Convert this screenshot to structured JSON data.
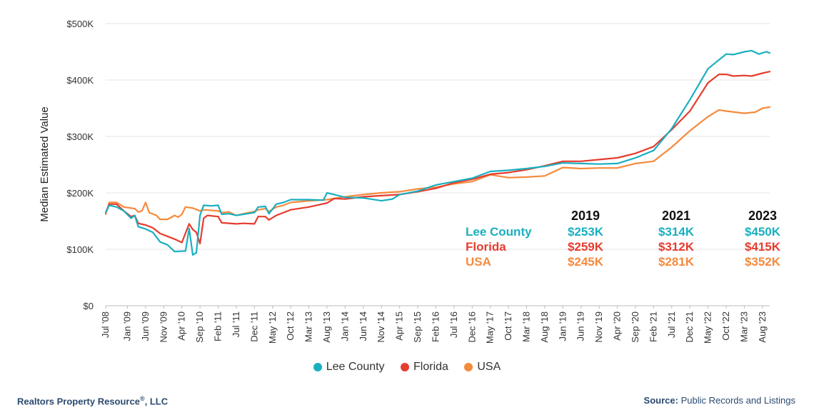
{
  "chart_data": {
    "type": "line",
    "ylabel": "Median Estimated Value",
    "ylim": [
      0,
      500000
    ],
    "yticks": [
      "$0",
      "$100K",
      "$200K",
      "$300K",
      "$400K",
      "$500K"
    ],
    "ytick_values": [
      0,
      100000,
      200000,
      300000,
      400000,
      500000
    ],
    "x_start": "Jul '08",
    "x_end": "Oct '23",
    "xticks": [
      "Jul '08",
      "Jan '09",
      "Jun '09",
      "Nov '09",
      "Apr '10",
      "Sep '10",
      "Feb '11",
      "Jul '11",
      "Dec '11",
      "May '12",
      "Oct '12",
      "Mar '13",
      "Aug '13",
      "Jan '14",
      "Jun '14",
      "Nov '14",
      "Apr '15",
      "Sep '15",
      "Feb '16",
      "Jul '16",
      "Dec '16",
      "May '17",
      "Oct '17",
      "Mar '18",
      "Aug '18",
      "Jan '19",
      "Jun '19",
      "Nov '19",
      "Apr '20",
      "Sep '20",
      "Feb '21",
      "Jul '21",
      "Dec '21",
      "May '22",
      "Oct '22",
      "Mar '23",
      "Aug '23"
    ],
    "grid": "horizontal",
    "legend_position": "bottom",
    "series": [
      {
        "name": "Lee County",
        "color": "#1aafc0",
        "points": [
          [
            "Jul '08",
            165000
          ],
          [
            "Aug '08",
            178000
          ],
          [
            "Oct '08",
            175000
          ],
          [
            "Dec '08",
            168000
          ],
          [
            "Feb '09",
            155000
          ],
          [
            "Mar '09",
            160000
          ],
          [
            "Apr '09",
            140000
          ],
          [
            "Jun '09",
            136000
          ],
          [
            "Aug '09",
            130000
          ],
          [
            "Oct '09",
            113000
          ],
          [
            "Dec '09",
            108000
          ],
          [
            "Feb '10",
            96000
          ],
          [
            "May '10",
            97000
          ],
          [
            "Jun '10",
            137000
          ],
          [
            "Jul '10",
            90000
          ],
          [
            "Aug '10",
            94000
          ],
          [
            "Sep '10",
            160000
          ],
          [
            "Oct '10",
            178000
          ],
          [
            "Dec '10",
            177000
          ],
          [
            "Feb '11",
            178000
          ],
          [
            "Mar '11",
            162000
          ],
          [
            "May '11",
            163000
          ],
          [
            "Jul '11",
            160000
          ],
          [
            "Sep '11",
            162000
          ],
          [
            "Dec '11",
            165000
          ],
          [
            "Jan '12",
            175000
          ],
          [
            "Mar '12",
            176000
          ],
          [
            "Apr '12",
            163000
          ],
          [
            "Jun '12",
            180000
          ],
          [
            "Aug '12",
            183000
          ],
          [
            "Oct '12",
            188000
          ],
          [
            "Mar '13",
            188000
          ],
          [
            "Jul '13",
            187000
          ],
          [
            "Aug '13",
            200000
          ],
          [
            "Oct '13",
            197000
          ],
          [
            "Jan '14",
            192000
          ],
          [
            "Jun '14",
            191000
          ],
          [
            "Nov '14",
            186000
          ],
          [
            "Feb '15",
            189000
          ],
          [
            "Apr '15",
            197000
          ],
          [
            "Sep '15",
            203000
          ],
          [
            "Feb '16",
            214000
          ],
          [
            "Jul '16",
            220000
          ],
          [
            "Dec '16",
            226000
          ],
          [
            "May '17",
            238000
          ],
          [
            "Oct '17",
            240000
          ],
          [
            "Mar '18",
            243000
          ],
          [
            "Aug '18",
            247000
          ],
          [
            "Jan '19",
            253000
          ],
          [
            "Jun '19",
            252000
          ],
          [
            "Nov '19",
            251000
          ],
          [
            "Apr '20",
            252000
          ],
          [
            "Sep '20",
            262000
          ],
          [
            "Feb '21",
            275000
          ],
          [
            "Jul '21",
            314000
          ],
          [
            "Dec '21",
            365000
          ],
          [
            "May '22",
            420000
          ],
          [
            "Oct '22",
            446000
          ],
          [
            "Dec '22",
            445000
          ],
          [
            "Mar '23",
            450000
          ],
          [
            "May '23",
            452000
          ],
          [
            "Jul '23",
            446000
          ],
          [
            "Sep '23",
            450000
          ],
          [
            "Oct '23",
            448000
          ]
        ]
      },
      {
        "name": "Florida",
        "color": "#e63c2f",
        "points": [
          [
            "Jul '08",
            165000
          ],
          [
            "Aug '08",
            180000
          ],
          [
            "Oct '08",
            180000
          ],
          [
            "Dec '08",
            168000
          ],
          [
            "Feb '09",
            158000
          ],
          [
            "Mar '09",
            160000
          ],
          [
            "Apr '09",
            146000
          ],
          [
            "Jun '09",
            143000
          ],
          [
            "Aug '09",
            138000
          ],
          [
            "Oct '09",
            128000
          ],
          [
            "Dec '09",
            123000
          ],
          [
            "Feb '10",
            118000
          ],
          [
            "Apr '10",
            112000
          ],
          [
            "Jun '10",
            145000
          ],
          [
            "Jul '10",
            135000
          ],
          [
            "Aug '10",
            130000
          ],
          [
            "Sep '10",
            110000
          ],
          [
            "Oct '10",
            155000
          ],
          [
            "Nov '10",
            160000
          ],
          [
            "Feb '11",
            158000
          ],
          [
            "Mar '11",
            147000
          ],
          [
            "Jul '11",
            145000
          ],
          [
            "Sep '11",
            146000
          ],
          [
            "Dec '11",
            145000
          ],
          [
            "Jan '12",
            158000
          ],
          [
            "Mar '12",
            158000
          ],
          [
            "Apr '12",
            152000
          ],
          [
            "Jun '12",
            160000
          ],
          [
            "Aug '12",
            165000
          ],
          [
            "Oct '12",
            170000
          ],
          [
            "Mar '13",
            175000
          ],
          [
            "Aug '13",
            182000
          ],
          [
            "Oct '13",
            190000
          ],
          [
            "Jan '14",
            189000
          ],
          [
            "Jun '14",
            193000
          ],
          [
            "Nov '14",
            195000
          ],
          [
            "Apr '15",
            197000
          ],
          [
            "Sep '15",
            202000
          ],
          [
            "Feb '16",
            208000
          ],
          [
            "Jul '16",
            218000
          ],
          [
            "Dec '16",
            224000
          ],
          [
            "May '17",
            233000
          ],
          [
            "Oct '17",
            236000
          ],
          [
            "Mar '18",
            241000
          ],
          [
            "Aug '18",
            248000
          ],
          [
            "Jan '19",
            256000
          ],
          [
            "Jun '19",
            256000
          ],
          [
            "Nov '19",
            259000
          ],
          [
            "Apr '20",
            262000
          ],
          [
            "Sep '20",
            270000
          ],
          [
            "Feb '21",
            282000
          ],
          [
            "Jul '21",
            312000
          ],
          [
            "Dec '21",
            345000
          ],
          [
            "May '22",
            395000
          ],
          [
            "Aug '22",
            410000
          ],
          [
            "Oct '22",
            410000
          ],
          [
            "Dec '22",
            407000
          ],
          [
            "Mar '23",
            408000
          ],
          [
            "May '23",
            407000
          ],
          [
            "Aug '23",
            412000
          ],
          [
            "Oct '23",
            415000
          ]
        ]
      },
      {
        "name": "USA",
        "color": "#f58a3c",
        "points": [
          [
            "Jul '08",
            162000
          ],
          [
            "Aug '08",
            183000
          ],
          [
            "Oct '08",
            183000
          ],
          [
            "Dec '08",
            175000
          ],
          [
            "Mar '09",
            172000
          ],
          [
            "Apr '09",
            166000
          ],
          [
            "May '09",
            168000
          ],
          [
            "Jun '09",
            183000
          ],
          [
            "Jul '09",
            165000
          ],
          [
            "Sep '09",
            160000
          ],
          [
            "Oct '09",
            153000
          ],
          [
            "Dec '09",
            153000
          ],
          [
            "Feb '10",
            160000
          ],
          [
            "Mar '10",
            157000
          ],
          [
            "Apr '10",
            162000
          ],
          [
            "May '10",
            175000
          ],
          [
            "Jul '10",
            173000
          ],
          [
            "Sep '10",
            168000
          ],
          [
            "Oct '10",
            170000
          ],
          [
            "Feb '11",
            168000
          ],
          [
            "Mar '11",
            165000
          ],
          [
            "May '11",
            166000
          ],
          [
            "Jul '11",
            160000
          ],
          [
            "Sep '11",
            163000
          ],
          [
            "Dec '11",
            167000
          ],
          [
            "Jan '12",
            170000
          ],
          [
            "Mar '12",
            172000
          ],
          [
            "Apr '12",
            167000
          ],
          [
            "Jun '12",
            175000
          ],
          [
            "Aug '12",
            178000
          ],
          [
            "Oct '12",
            183000
          ],
          [
            "Mar '13",
            186000
          ],
          [
            "Aug '13",
            188000
          ],
          [
            "Jan '14",
            193000
          ],
          [
            "Jun '14",
            197000
          ],
          [
            "Nov '14",
            200000
          ],
          [
            "Apr '15",
            202000
          ],
          [
            "Sep '15",
            207000
          ],
          [
            "Feb '16",
            210000
          ],
          [
            "Jul '16",
            216000
          ],
          [
            "Dec '16",
            220000
          ],
          [
            "May '17",
            232000
          ],
          [
            "Oct '17",
            227000
          ],
          [
            "Mar '18",
            228000
          ],
          [
            "Aug '18",
            230000
          ],
          [
            "Jan '19",
            245000
          ],
          [
            "Jun '19",
            243000
          ],
          [
            "Nov '19",
            244000
          ],
          [
            "Apr '20",
            244000
          ],
          [
            "Sep '20",
            252000
          ],
          [
            "Feb '21",
            256000
          ],
          [
            "Jul '21",
            281000
          ],
          [
            "Dec '21",
            310000
          ],
          [
            "May '22",
            335000
          ],
          [
            "Aug '22",
            347000
          ],
          [
            "Oct '22",
            345000
          ],
          [
            "Mar '23",
            341000
          ],
          [
            "Jun '23",
            343000
          ],
          [
            "Aug '23",
            350000
          ],
          [
            "Oct '23",
            352000
          ]
        ]
      }
    ],
    "summary_table": {
      "years": [
        "2019",
        "2021",
        "2023"
      ],
      "rows": [
        {
          "label": "Lee County",
          "color": "#1aafc0",
          "values": [
            "$253K",
            "$314K",
            "$450K"
          ]
        },
        {
          "label": "Florida",
          "color": "#e63c2f",
          "values": [
            "$259K",
            "$312K",
            "$415K"
          ]
        },
        {
          "label": "USA",
          "color": "#f58a3c",
          "values": [
            "$245K",
            "$281K",
            "$352K"
          ]
        }
      ]
    }
  },
  "legend": [
    {
      "label": "Lee County",
      "color": "#1aafc0"
    },
    {
      "label": "Florida",
      "color": "#e63c2f"
    },
    {
      "label": "USA",
      "color": "#f58a3c"
    }
  ],
  "footer": {
    "left_name": "Realtors Property Resource",
    "left_mark": "®",
    "left_suffix": ", LLC",
    "right_label": "Source:",
    "right_value": "Public Records and Listings"
  }
}
